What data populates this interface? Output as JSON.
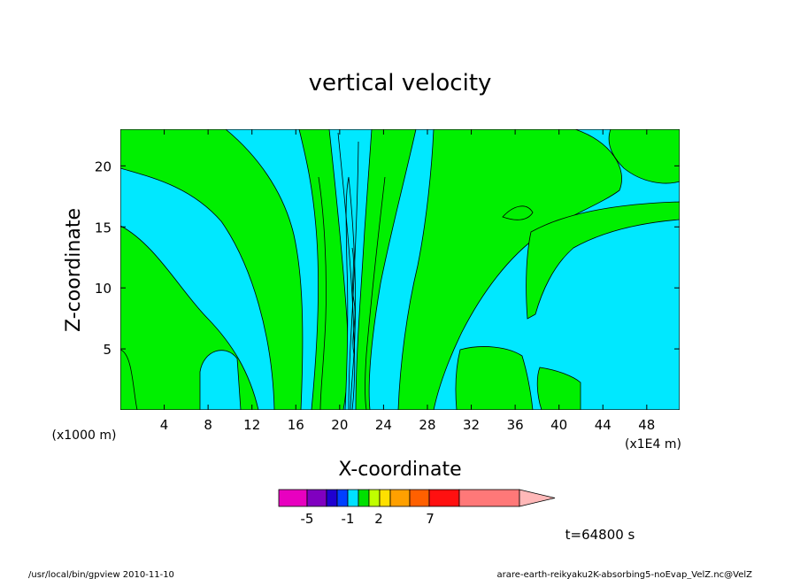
{
  "chart_data": {
    "type": "heatmap",
    "title": "vertical velocity",
    "xlabel": "X-coordinate",
    "ylabel": "Z-coordinate",
    "x_unit_left": "(x1000 m)",
    "x_unit_right": "(x1E4 m)",
    "xlim": [
      0,
      51
    ],
    "ylim": [
      0,
      23
    ],
    "x_ticks": [
      "4",
      "8",
      "12",
      "16",
      "20",
      "24",
      "28",
      "32",
      "36",
      "40",
      "44",
      "48"
    ],
    "x_tick_values": [
      4,
      8,
      12,
      16,
      20,
      24,
      28,
      32,
      36,
      40,
      44,
      48
    ],
    "y_ticks": [
      "5",
      "10",
      "15",
      "20"
    ],
    "y_tick_values": [
      5,
      10,
      15,
      20
    ],
    "field_colors": {
      "negative": "#00e8ff",
      "positive": "#00f000"
    },
    "colorbar": {
      "colors": [
        "#e800c0",
        "#8000c0",
        "#2000d0",
        "#0040ff",
        "#00e0ff",
        "#00e000",
        "#c0ff00",
        "#ffe000",
        "#ffa000",
        "#ff6000",
        "#ff1010",
        "#ff7878",
        "#ffb8b8"
      ],
      "labels": [
        "-5",
        "-1",
        "2",
        "7"
      ]
    },
    "time_label": "t=64800 s"
  },
  "footer": {
    "left": "/usr/local/bin/gpview  2010-11-10",
    "right": "arare-earth-reikyaku2K-absorbing5-noEvap_VelZ.nc@VelZ"
  }
}
